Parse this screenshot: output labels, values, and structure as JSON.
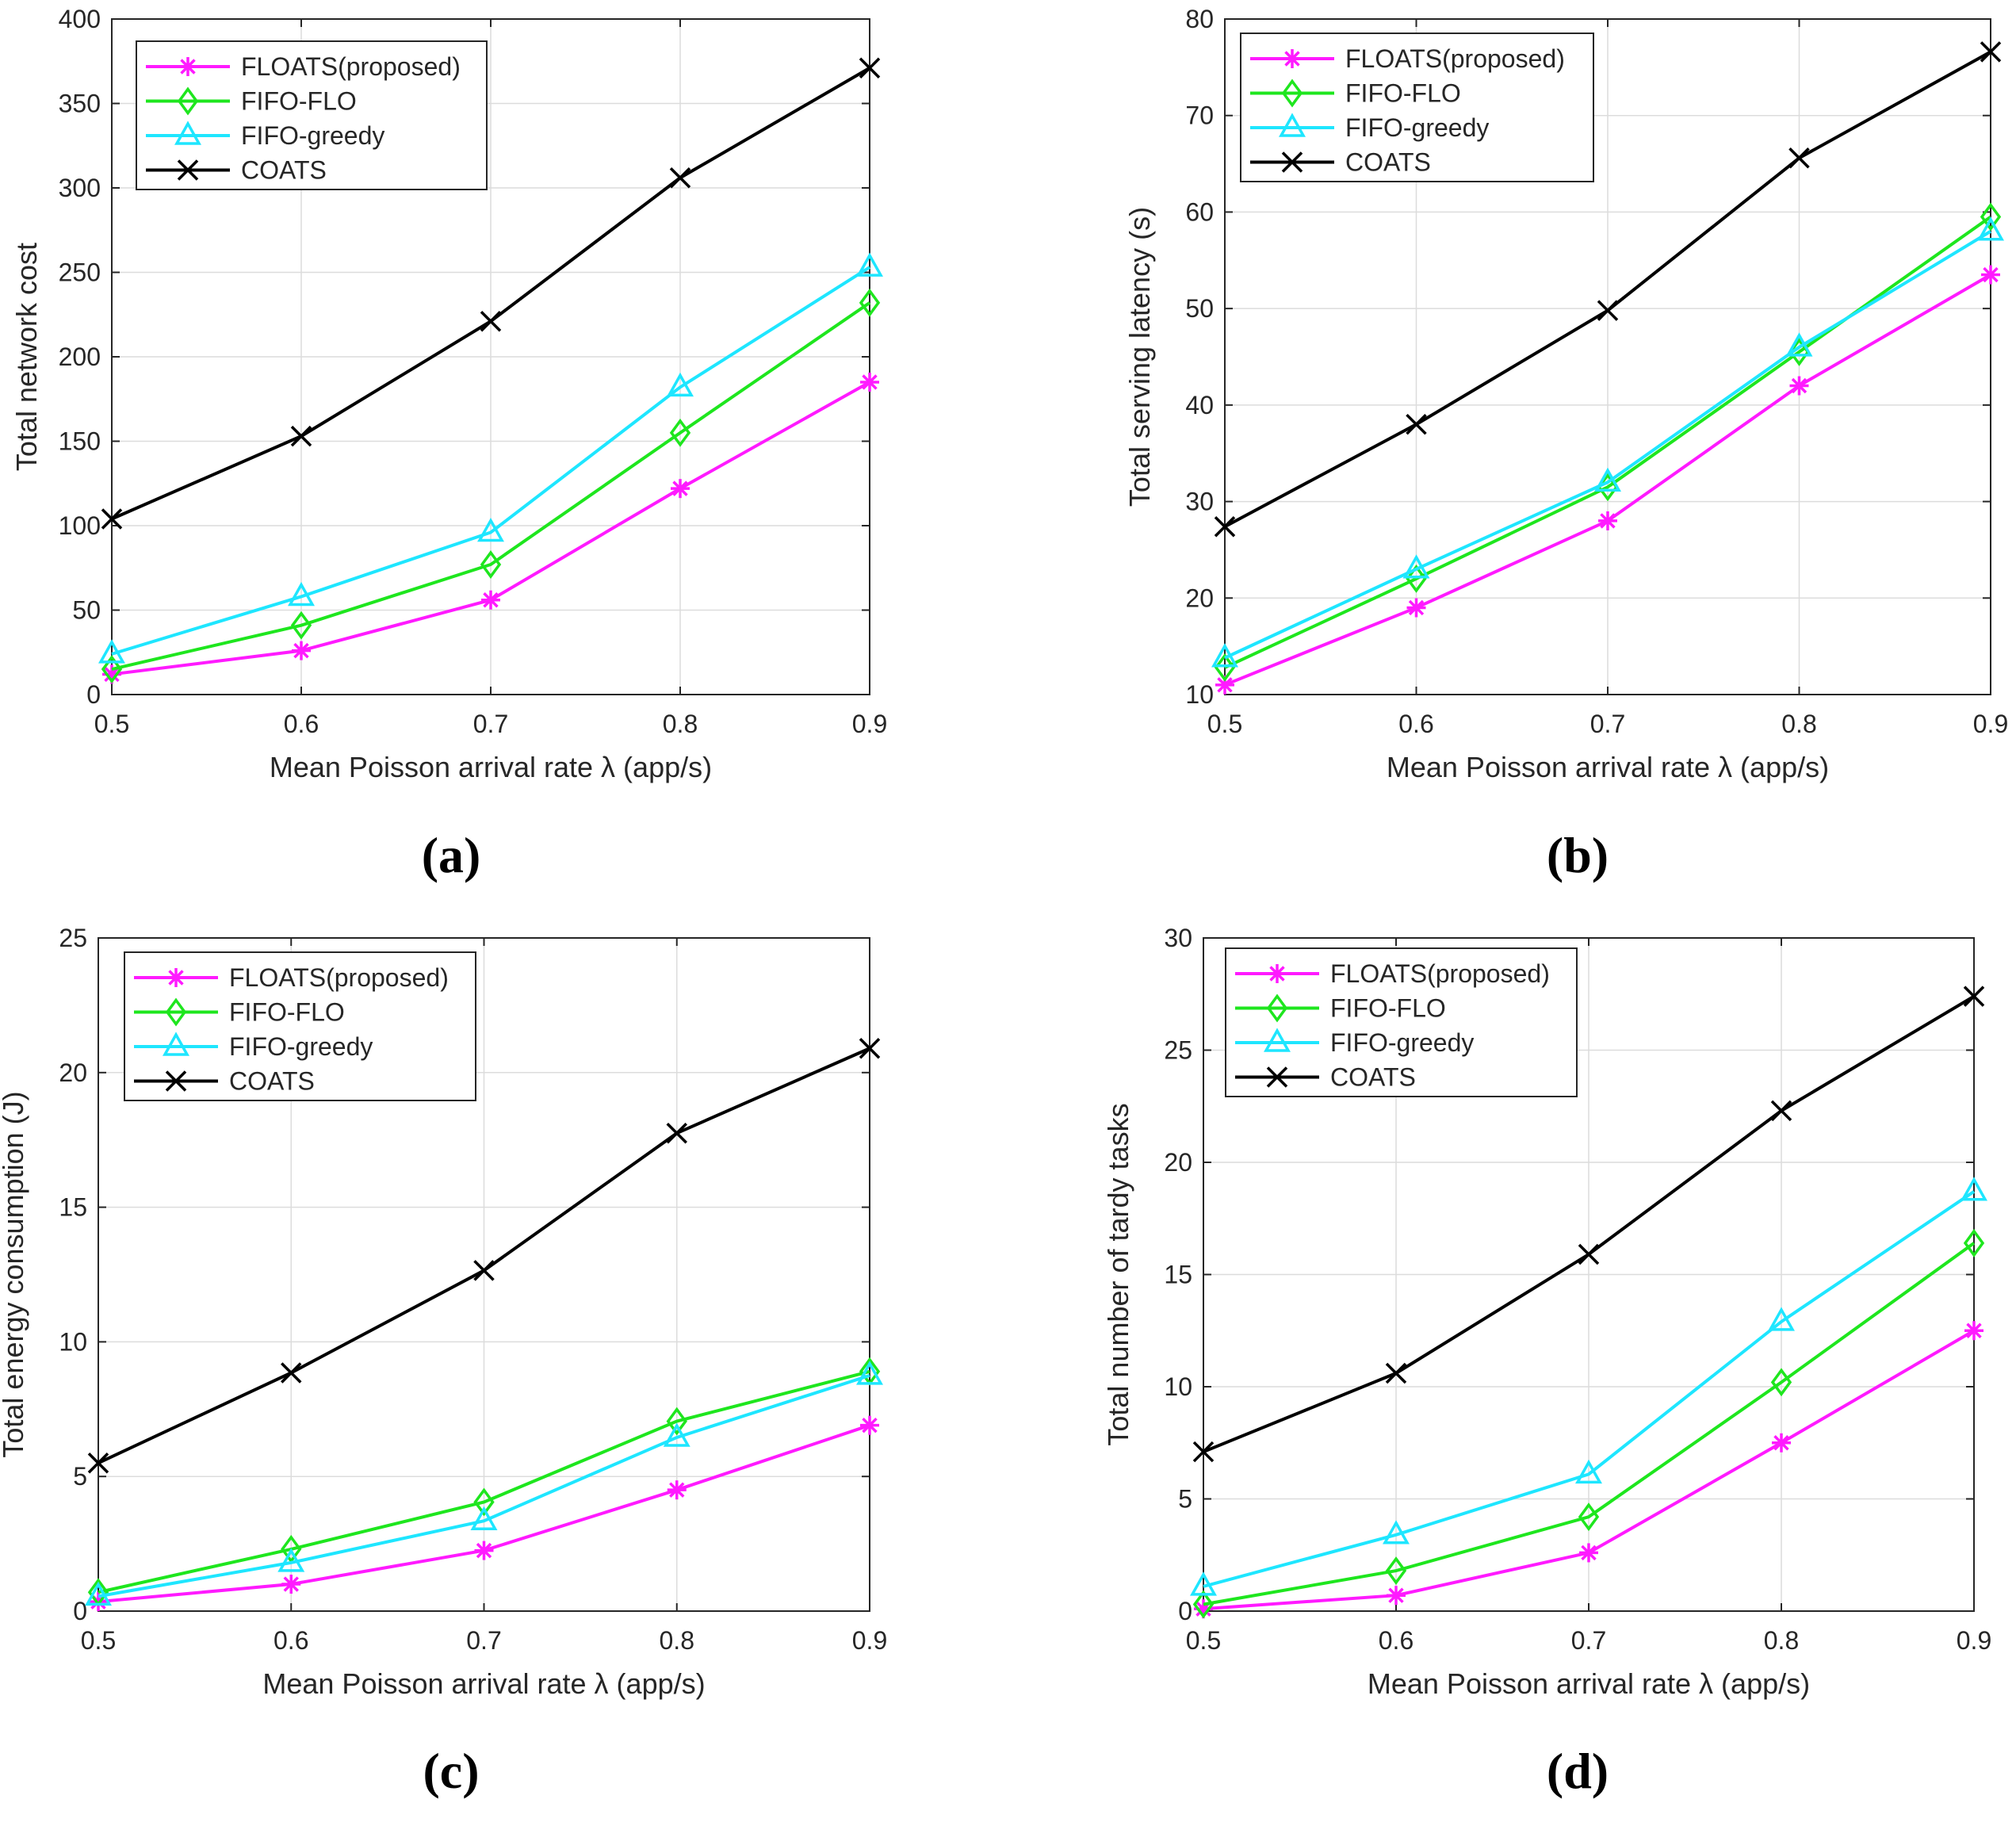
{
  "figure": {
    "colors": {
      "FLOATS(proposed)": "#ff1aff",
      "FIFO-FLO": "#1ee61e",
      "FIFO-greedy": "#1ee6ff",
      "COATS": "#000000",
      "grid": "#dcdcdc",
      "axis": "#262626"
    }
  },
  "chart_data": [
    {
      "id": "a",
      "type": "line",
      "panel_label": "(a)",
      "xlabel": "Mean Poisson arrival rate λ (app/s)",
      "ylabel": "Total network cost",
      "x": [
        0.5,
        0.6,
        0.7,
        0.8,
        0.9
      ],
      "xticks": [
        "0.5",
        "0.6",
        "0.7",
        "0.8",
        "0.9"
      ],
      "xlim": [
        0.5,
        0.9
      ],
      "ylim": [
        0,
        400
      ],
      "yticks": [
        "0",
        "50",
        "100",
        "150",
        "200",
        "250",
        "300",
        "350",
        "400"
      ],
      "grid": true,
      "legend_position": "top-left",
      "series": [
        {
          "name": "FLOATS(proposed)",
          "marker": "asterisk",
          "values": [
            12,
            26,
            56,
            122,
            185
          ]
        },
        {
          "name": "FIFO-FLO",
          "marker": "diamond",
          "values": [
            15,
            41,
            77,
            155,
            232
          ]
        },
        {
          "name": "FIFO-greedy",
          "marker": "triangle",
          "values": [
            24,
            58,
            96,
            182,
            253
          ]
        },
        {
          "name": "COATS",
          "marker": "cross",
          "values": [
            104,
            153,
            221,
            306,
            371
          ]
        }
      ]
    },
    {
      "id": "b",
      "type": "line",
      "panel_label": "(b)",
      "xlabel": "Mean Poisson arrival rate λ (app/s)",
      "ylabel": "Total serving latency (s)",
      "x": [
        0.5,
        0.6,
        0.7,
        0.8,
        0.9
      ],
      "xticks": [
        "0.5",
        "0.6",
        "0.7",
        "0.8",
        "0.9"
      ],
      "xlim": [
        0.5,
        0.9
      ],
      "ylim": [
        10,
        80
      ],
      "yticks": [
        "10",
        "20",
        "30",
        "40",
        "50",
        "60",
        "70",
        "80"
      ],
      "grid": true,
      "legend_position": "top-left",
      "series": [
        {
          "name": "FLOATS(proposed)",
          "marker": "asterisk",
          "values": [
            11,
            19,
            28,
            42,
            53.5
          ]
        },
        {
          "name": "FIFO-FLO",
          "marker": "diamond",
          "values": [
            12.8,
            22,
            31.5,
            45.5,
            59.5
          ]
        },
        {
          "name": "FIFO-greedy",
          "marker": "triangle",
          "values": [
            13.8,
            23,
            32,
            46,
            58
          ]
        },
        {
          "name": "COATS",
          "marker": "cross",
          "values": [
            27.4,
            38,
            49.8,
            65.6,
            76.6
          ]
        }
      ]
    },
    {
      "id": "c",
      "type": "line",
      "panel_label": "(c)",
      "xlabel": "Mean Poisson arrival rate λ (app/s)",
      "ylabel": "Total energy consumption (J)",
      "x": [
        0.5,
        0.6,
        0.7,
        0.8,
        0.9
      ],
      "xticks": [
        "0.5",
        "0.6",
        "0.7",
        "0.8",
        "0.9"
      ],
      "xlim": [
        0.5,
        0.9
      ],
      "ylim": [
        0,
        25
      ],
      "yticks": [
        "0",
        "5",
        "10",
        "15",
        "20",
        "25"
      ],
      "grid": true,
      "legend_position": "top-left",
      "series": [
        {
          "name": "FLOATS(proposed)",
          "marker": "asterisk",
          "values": [
            0.35,
            1.0,
            2.25,
            4.5,
            6.9
          ]
        },
        {
          "name": "FIFO-FLO",
          "marker": "diamond",
          "values": [
            0.7,
            2.3,
            4.05,
            7.05,
            8.9
          ]
        },
        {
          "name": "FIFO-greedy",
          "marker": "triangle",
          "values": [
            0.55,
            1.8,
            3.35,
            6.45,
            8.75
          ]
        },
        {
          "name": "COATS",
          "marker": "cross",
          "values": [
            5.5,
            8.85,
            12.65,
            17.75,
            20.9
          ]
        }
      ]
    },
    {
      "id": "d",
      "type": "line",
      "panel_label": "(d)",
      "xlabel": "Mean Poisson arrival rate λ (app/s)",
      "ylabel": "Total number of tardy tasks",
      "x": [
        0.5,
        0.6,
        0.7,
        0.8,
        0.9
      ],
      "xticks": [
        "0.5",
        "0.6",
        "0.7",
        "0.8",
        "0.9"
      ],
      "xlim": [
        0.5,
        0.9
      ],
      "ylim": [
        0,
        30
      ],
      "yticks": [
        "0",
        "5",
        "10",
        "15",
        "20",
        "25",
        "30"
      ],
      "grid": true,
      "legend_position": "top-left",
      "series": [
        {
          "name": "FLOATS(proposed)",
          "marker": "asterisk",
          "values": [
            0.1,
            0.7,
            2.6,
            7.5,
            12.5
          ]
        },
        {
          "name": "FIFO-FLO",
          "marker": "diamond",
          "values": [
            0.3,
            1.8,
            4.2,
            10.2,
            16.4
          ]
        },
        {
          "name": "FIFO-greedy",
          "marker": "triangle",
          "values": [
            1.1,
            3.4,
            6.1,
            12.9,
            18.7
          ]
        },
        {
          "name": "COATS",
          "marker": "cross",
          "values": [
            7.1,
            10.6,
            15.9,
            22.3,
            27.4
          ]
        }
      ]
    }
  ]
}
